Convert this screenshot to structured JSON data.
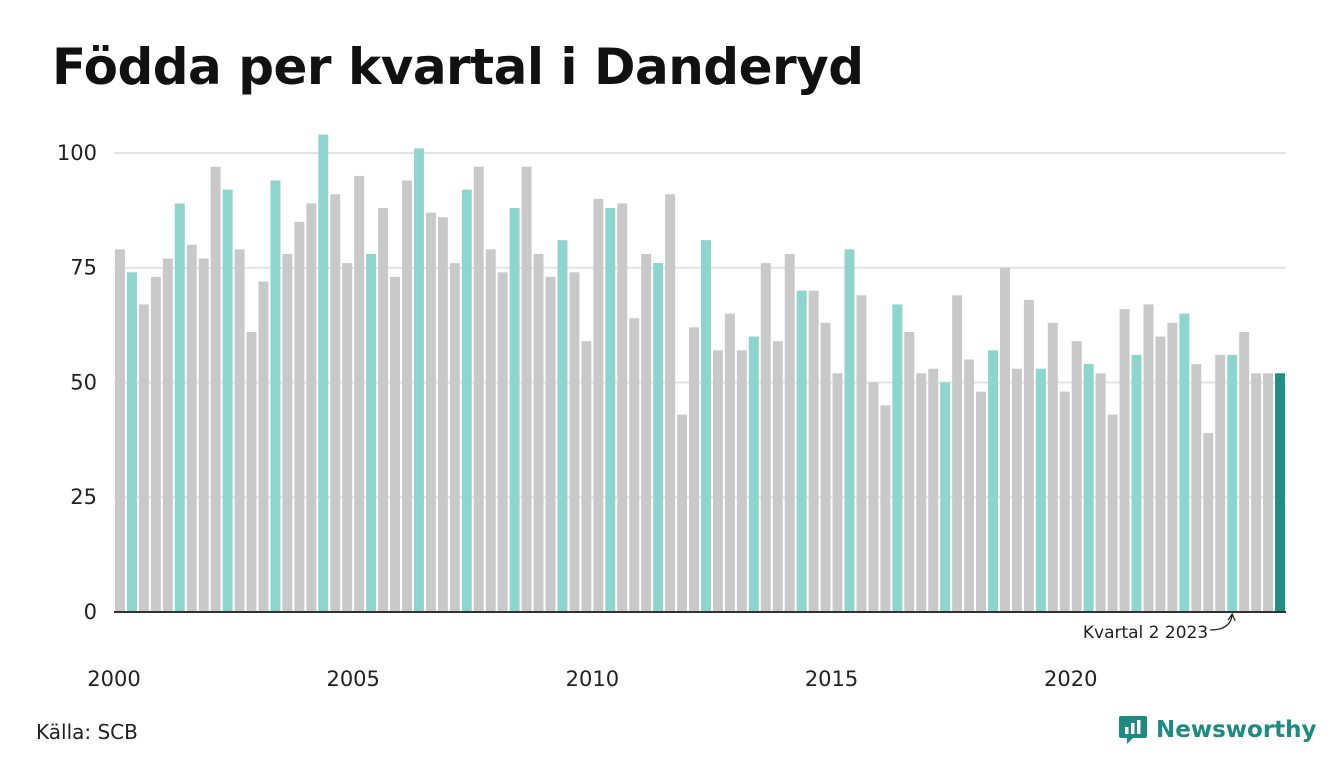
{
  "colors": {
    "highlight": "#8dd5cd",
    "default": "#c9c9c9",
    "latest": "#1e8f84",
    "grid": "#e3e3e3",
    "axis": "#333333",
    "brand": "#1e8a82"
  },
  "title": "Födda per kvartal i Danderyd",
  "source": "Källa: SCB",
  "brand": {
    "name": "Newsworthy",
    "icon": "chart-bubble-icon"
  },
  "chart_data": {
    "type": "bar",
    "title": "Födda per kvartal i Danderyd",
    "xlabel": "",
    "ylabel": "",
    "ylim": [
      0,
      105
    ],
    "yticks": [
      {
        "value": 0,
        "label": "0"
      },
      {
        "value": 25,
        "label": "25"
      },
      {
        "value": 50,
        "label": "50"
      },
      {
        "value": 75,
        "label": "75"
      },
      {
        "value": 100,
        "label": "100"
      }
    ],
    "xticks": [
      {
        "year": 2000,
        "label": "2000"
      },
      {
        "year": 2005,
        "label": "2005"
      },
      {
        "year": 2010,
        "label": "2010"
      },
      {
        "year": 2015,
        "label": "2015"
      },
      {
        "year": 2020,
        "label": "2020"
      }
    ],
    "start_year": 2000,
    "grid": true,
    "highlight_quarter": 2,
    "annotation": "Kvartal 2 2023",
    "values": [
      79,
      74,
      67,
      73,
      77,
      89,
      80,
      77,
      97,
      92,
      79,
      61,
      72,
      94,
      78,
      85,
      89,
      104,
      91,
      76,
      95,
      78,
      88,
      73,
      94,
      101,
      87,
      86,
      76,
      92,
      97,
      79,
      74,
      88,
      97,
      78,
      73,
      81,
      74,
      59,
      90,
      88,
      89,
      64,
      78,
      76,
      91,
      43,
      62,
      81,
      57,
      65,
      57,
      60,
      76,
      59,
      78,
      70,
      70,
      63,
      52,
      79,
      69,
      50,
      45,
      67,
      61,
      52,
      53,
      50,
      69,
      55,
      48,
      57,
      75,
      53,
      68,
      53,
      63,
      48,
      59,
      54,
      52,
      43,
      66,
      56,
      67,
      60,
      63,
      65,
      54,
      39,
      56,
      56,
      61,
      52,
      52,
      52
    ]
  }
}
